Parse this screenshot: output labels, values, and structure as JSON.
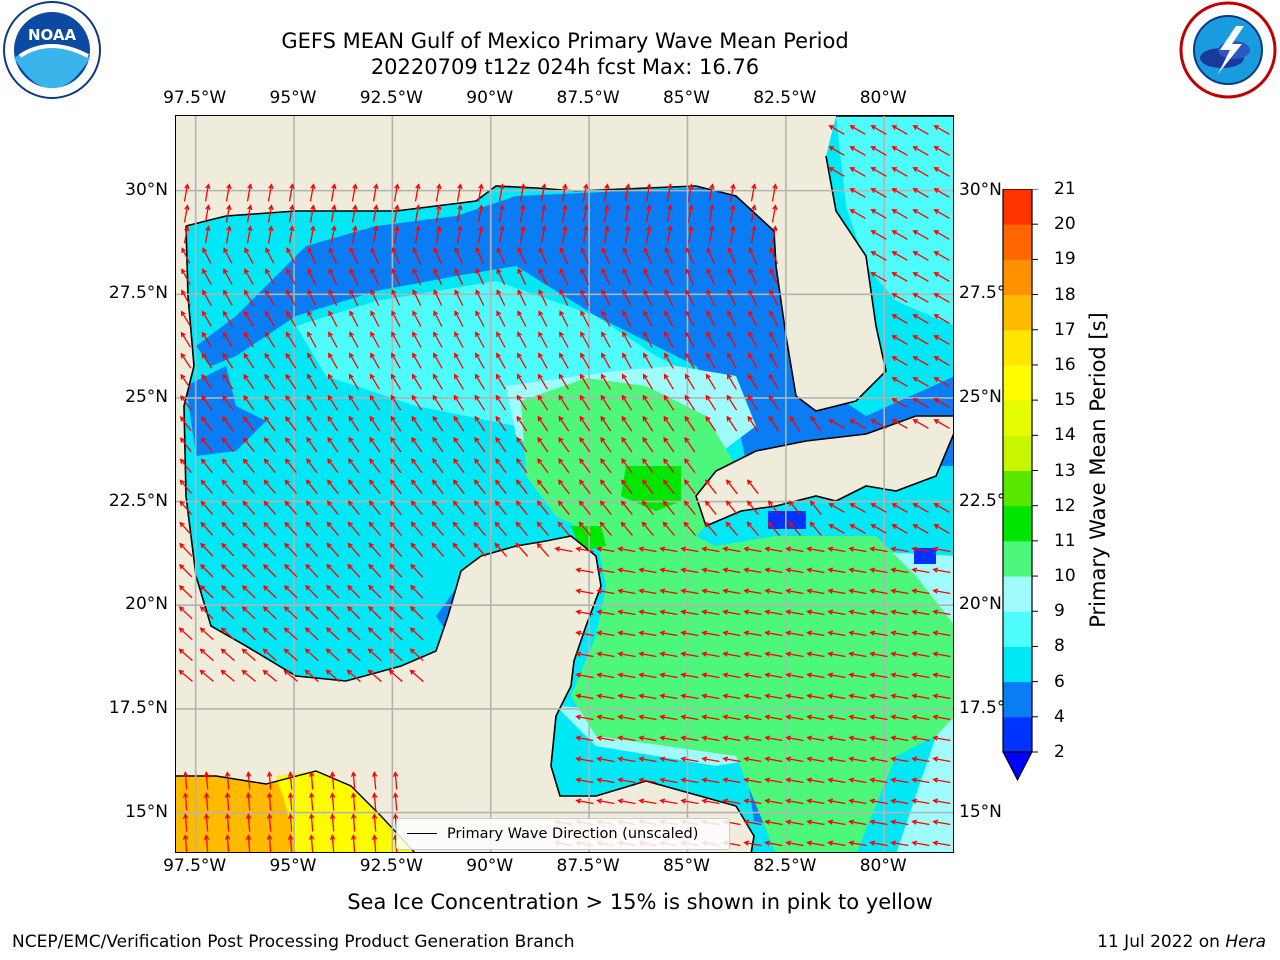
{
  "title": {
    "line1": "GEFS MEAN Gulf of Mexico Primary Wave Mean Period",
    "line2": "20220709 t12z 024h fcst   Max: 16.76"
  },
  "map": {
    "lon_ticks": [
      "97.5°W",
      "95°W",
      "92.5°W",
      "90°W",
      "87.5°W",
      "85°W",
      "82.5°W",
      "80°W"
    ],
    "lat_ticks": [
      "30°N",
      "27.5°N",
      "25°N",
      "22.5°N",
      "20°N",
      "17.5°N",
      "15°N"
    ],
    "extent": {
      "lon_min": -98,
      "lon_max": -78.2,
      "lat_min": 14,
      "lat_max": 31.8
    },
    "land_color": "#efecdc",
    "arrow_color": "#ff0000",
    "grid": true
  },
  "legend": {
    "label": "Primary Wave Direction (unscaled)"
  },
  "colorbar": {
    "title": "Primary Wave Mean Period [s]",
    "labels": [
      "2",
      "4",
      "6",
      "8",
      "9",
      "10",
      "11",
      "12",
      "13",
      "14",
      "15",
      "16",
      "17",
      "18",
      "19",
      "20",
      "21"
    ],
    "colors": [
      "#0033ff",
      "#0a7df5",
      "#00e8f5",
      "#4ffcfc",
      "#a0fcfc",
      "#4cf77c",
      "#00e600",
      "#5be600",
      "#c8f500",
      "#e6fc00",
      "#fffc00",
      "#ffe600",
      "#ffbb00",
      "#ff9100",
      "#ff6600",
      "#ff3300",
      "#ff0000"
    ],
    "extend_min_color": "#0000ff"
  },
  "notes": {
    "sea_ice": "Sea Ice Concentration > 15% is shown in pink to yellow",
    "footer_left": "NCEP/EMC/Verification Post Processing Product Generation Branch",
    "footer_right_date": "11 Jul 2022 on ",
    "footer_right_host": "Hera"
  },
  "logos": {
    "left": "noaa-logo",
    "right": "nws-logo"
  }
}
